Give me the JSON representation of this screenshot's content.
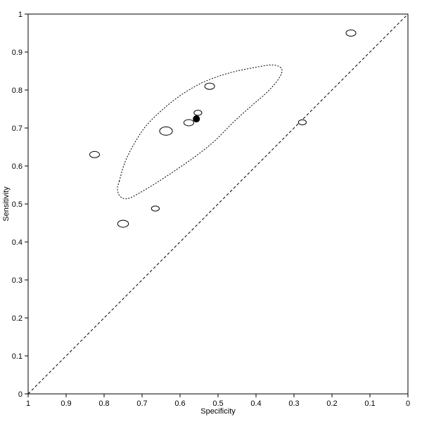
{
  "chart_data": {
    "type": "scatter",
    "title": "",
    "xlabel": "Specificity",
    "ylabel": "Sensitivity",
    "xlim": [
      1,
      0
    ],
    "ylim": [
      0,
      1
    ],
    "x_reversed": true,
    "grid": false,
    "x_ticks": [
      1,
      0.9,
      0.8,
      0.7,
      0.6,
      0.5,
      0.4,
      0.3,
      0.2,
      0.1,
      0
    ],
    "y_ticks": [
      0,
      0.1,
      0.2,
      0.3,
      0.4,
      0.5,
      0.6,
      0.7,
      0.8,
      0.9,
      1
    ],
    "x_tick_labels": [
      "1",
      "0.9",
      "0.8",
      "0.7",
      "0.6",
      "0.5",
      "0.4",
      "0.3",
      "0.2",
      "0.1",
      "0"
    ],
    "y_tick_labels": [
      "0",
      "0.1",
      "0.2",
      "0.3",
      "0.4",
      "0.5",
      "0.6",
      "0.7",
      "0.8",
      "0.9",
      "1"
    ],
    "studies": [
      {
        "specificity": 0.825,
        "sensitivity": 0.63,
        "weight": 1.0
      },
      {
        "specificity": 0.75,
        "sensitivity": 0.448,
        "weight": 1.1
      },
      {
        "specificity": 0.665,
        "sensitivity": 0.488,
        "weight": 0.8
      },
      {
        "specificity": 0.637,
        "sensitivity": 0.692,
        "weight": 1.3
      },
      {
        "specificity": 0.577,
        "sensitivity": 0.714,
        "weight": 1.0
      },
      {
        "specificity": 0.553,
        "sensitivity": 0.74,
        "weight": 0.8
      },
      {
        "specificity": 0.522,
        "sensitivity": 0.81,
        "weight": 1.0
      },
      {
        "specificity": 0.278,
        "sensitivity": 0.715,
        "weight": 0.8
      },
      {
        "specificity": 0.15,
        "sensitivity": 0.95,
        "weight": 1.0
      }
    ],
    "summary_point": {
      "specificity": 0.557,
      "sensitivity": 0.724
    },
    "confidence_region": [
      [
        0.76,
        0.56
      ],
      [
        0.745,
        0.61
      ],
      [
        0.72,
        0.66
      ],
      [
        0.69,
        0.705
      ],
      [
        0.65,
        0.745
      ],
      [
        0.6,
        0.785
      ],
      [
        0.54,
        0.82
      ],
      [
        0.47,
        0.845
      ],
      [
        0.4,
        0.86
      ],
      [
        0.355,
        0.866
      ],
      [
        0.332,
        0.855
      ],
      [
        0.34,
        0.83
      ],
      [
        0.37,
        0.795
      ],
      [
        0.41,
        0.76
      ],
      [
        0.46,
        0.715
      ],
      [
        0.51,
        0.665
      ],
      [
        0.56,
        0.625
      ],
      [
        0.61,
        0.59
      ],
      [
        0.66,
        0.557
      ],
      [
        0.705,
        0.53
      ],
      [
        0.738,
        0.514
      ],
      [
        0.758,
        0.52
      ],
      [
        0.765,
        0.54
      ]
    ],
    "reference_line": [
      [
        1,
        0
      ],
      [
        0,
        1
      ]
    ]
  }
}
